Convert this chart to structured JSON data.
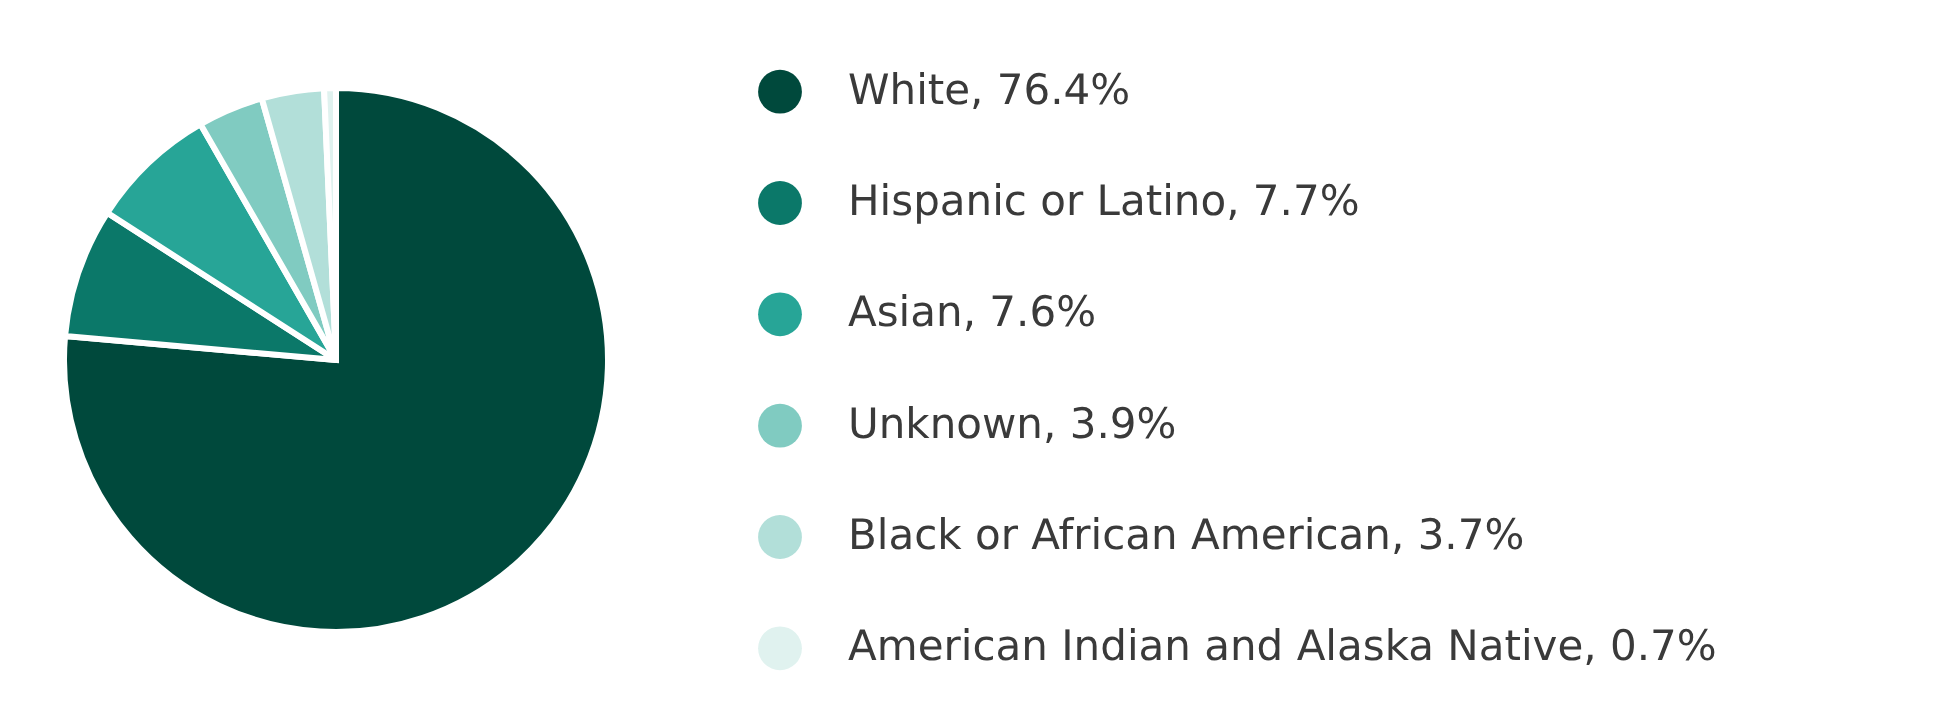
{
  "chart_data": {
    "type": "pie",
    "categories": [
      "White",
      "Hispanic or Latino",
      "Asian",
      "Unknown",
      "Black or African American",
      "American Indian and Alaska Native"
    ],
    "values": [
      76.4,
      7.7,
      7.6,
      3.9,
      3.7,
      0.7
    ],
    "value_labels": [
      "76.4%",
      "7.7%",
      "7.6%",
      "3.9%",
      "3.7%",
      "0.7%"
    ],
    "colors": [
      "#00493c",
      "#0b7869",
      "#27a597",
      "#80cbc1",
      "#b2dfd9",
      "#e0f2ef"
    ],
    "legend": "right"
  }
}
